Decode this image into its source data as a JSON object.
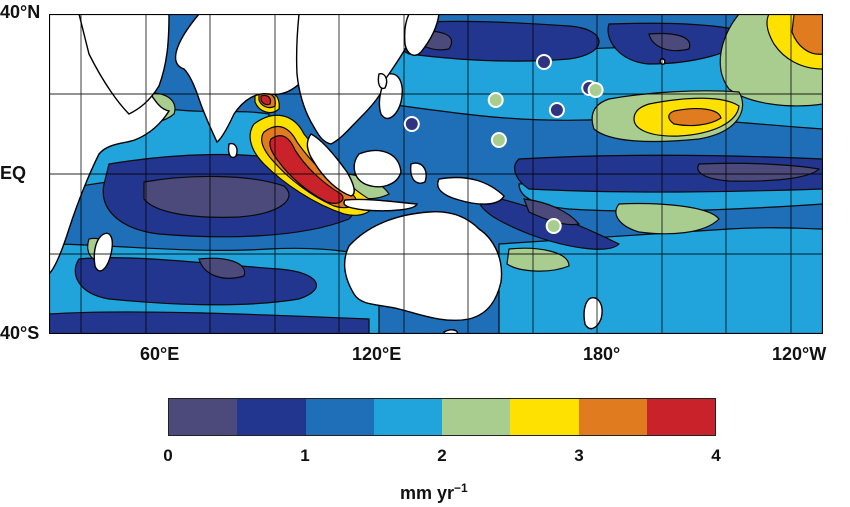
{
  "map": {
    "lat_labels": [
      "40°N",
      "EQ",
      "40°S"
    ],
    "lon_labels": [
      "60°E",
      "120°E",
      "180°",
      "120°W"
    ],
    "extent": {
      "lon_min": 30,
      "lon_max": 270,
      "lat_min": -40,
      "lat_max": 40
    },
    "markers": [
      {
        "lon": 142.5,
        "lat": 12.5,
        "fill": "#2e3480",
        "name": "marker-dark-1"
      },
      {
        "lon": 168.5,
        "lat": 18.5,
        "fill": "#a9cc8f",
        "name": "marker-green-1"
      },
      {
        "lon": 169.5,
        "lat": 8.5,
        "fill": "#a9cc8f",
        "name": "marker-green-2"
      },
      {
        "lon": 183.5,
        "lat": 28.0,
        "fill": "#2e3480",
        "name": "marker-dark-2"
      },
      {
        "lon": 187.5,
        "lat": 16.0,
        "fill": "#2e3480",
        "name": "marker-dark-3"
      },
      {
        "lon": 197.5,
        "lat": 21.5,
        "fill": "#2e3480",
        "name": "marker-dark-4"
      },
      {
        "lon": 199.5,
        "lat": 21.0,
        "fill": "#a9cc8f",
        "name": "marker-green-3"
      },
      {
        "lon": 186.5,
        "lat": -13.0,
        "fill": "#a9cc8f",
        "name": "marker-green-4"
      }
    ]
  },
  "colorbar": {
    "colors": [
      "#4b4a7a",
      "#22368f",
      "#1e6eb8",
      "#21a3dc",
      "#a9cc8f",
      "#ffe100",
      "#e07b20",
      "#c9222b"
    ],
    "ticks": [
      "0",
      "1",
      "2",
      "3",
      "4"
    ],
    "units": "mm yr",
    "units_exp": "−1"
  }
}
